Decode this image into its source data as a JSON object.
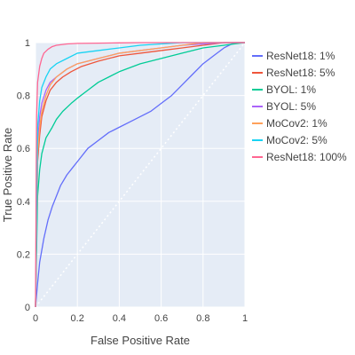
{
  "chart_data": {
    "type": "line",
    "title": "",
    "xlabel": "False Positive Rate",
    "ylabel": "True Positive Rate",
    "xlim": [
      0,
      1
    ],
    "ylim": [
      0,
      1
    ],
    "xticks": [
      "0",
      "0.2",
      "0.4",
      "0.6",
      "0.8",
      "1"
    ],
    "yticks": [
      "0",
      "0.2",
      "0.4",
      "0.6",
      "0.8",
      "1"
    ],
    "grid": true,
    "legend_position": "right",
    "plot_bgcolor": "#E5ECF6",
    "reference_line": {
      "style": "dotted",
      "color": "#ffffff",
      "x": [
        0,
        1
      ],
      "y": [
        0,
        1
      ]
    },
    "series": [
      {
        "name": "ResNet18: 1%",
        "color": "#636EFA",
        "x": [
          0,
          0.01,
          0.02,
          0.04,
          0.06,
          0.08,
          0.1,
          0.12,
          0.15,
          0.18,
          0.2,
          0.25,
          0.3,
          0.35,
          0.4,
          0.45,
          0.5,
          0.55,
          0.6,
          0.65,
          0.7,
          0.75,
          0.8,
          0.85,
          0.9,
          0.95,
          1.0
        ],
        "y": [
          0,
          0.09,
          0.17,
          0.26,
          0.33,
          0.38,
          0.42,
          0.46,
          0.5,
          0.53,
          0.55,
          0.6,
          0.63,
          0.66,
          0.68,
          0.7,
          0.72,
          0.74,
          0.77,
          0.8,
          0.84,
          0.88,
          0.92,
          0.95,
          0.98,
          1.0,
          1.0
        ]
      },
      {
        "name": "ResNet18: 5%",
        "color": "#EF553B",
        "x": [
          0,
          0.01,
          0.02,
          0.03,
          0.05,
          0.07,
          0.1,
          0.13,
          0.17,
          0.22,
          0.3,
          0.4,
          0.5,
          0.6,
          0.7,
          0.8,
          0.9,
          1.0
        ],
        "y": [
          0,
          0.55,
          0.65,
          0.72,
          0.78,
          0.82,
          0.85,
          0.87,
          0.89,
          0.91,
          0.93,
          0.95,
          0.96,
          0.97,
          0.98,
          0.99,
          1.0,
          1.0
        ]
      },
      {
        "name": "BYOL: 1%",
        "color": "#00CC96",
        "x": [
          0,
          0.01,
          0.02,
          0.03,
          0.05,
          0.08,
          0.1,
          0.13,
          0.17,
          0.2,
          0.25,
          0.3,
          0.35,
          0.4,
          0.5,
          0.6,
          0.7,
          0.8,
          0.9,
          1.0
        ],
        "y": [
          0,
          0.42,
          0.52,
          0.58,
          0.64,
          0.68,
          0.71,
          0.74,
          0.77,
          0.79,
          0.82,
          0.85,
          0.87,
          0.89,
          0.92,
          0.94,
          0.96,
          0.98,
          0.99,
          1.0
        ]
      },
      {
        "name": "BYOL: 5%",
        "color": "#AB63FA",
        "x": [
          0,
          0.01,
          0.02,
          0.03,
          0.05,
          0.07,
          0.1,
          0.15,
          0.2,
          0.3,
          0.4,
          0.5,
          0.6,
          0.7,
          0.8,
          0.9,
          1.0
        ],
        "y": [
          0,
          0.62,
          0.72,
          0.77,
          0.82,
          0.85,
          0.87,
          0.9,
          0.92,
          0.94,
          0.96,
          0.97,
          0.98,
          0.99,
          0.995,
          1.0,
          1.0
        ]
      },
      {
        "name": "MoCov2: 1%",
        "color": "#FFA15A",
        "x": [
          0,
          0.01,
          0.02,
          0.03,
          0.05,
          0.07,
          0.1,
          0.15,
          0.2,
          0.3,
          0.4,
          0.5,
          0.6,
          0.7,
          0.8,
          0.9,
          1.0
        ],
        "y": [
          0,
          0.58,
          0.68,
          0.74,
          0.8,
          0.84,
          0.87,
          0.9,
          0.92,
          0.94,
          0.96,
          0.97,
          0.98,
          0.99,
          1.0,
          1.0,
          1.0
        ]
      },
      {
        "name": "MoCov2: 5%",
        "color": "#19D3F3",
        "x": [
          0,
          0.01,
          0.02,
          0.03,
          0.05,
          0.07,
          0.1,
          0.15,
          0.2,
          0.3,
          0.4,
          0.5,
          0.6,
          0.7,
          0.8,
          0.9,
          1.0
        ],
        "y": [
          0,
          0.68,
          0.78,
          0.83,
          0.87,
          0.9,
          0.92,
          0.94,
          0.96,
          0.97,
          0.98,
          0.99,
          0.995,
          1.0,
          1.0,
          1.0,
          1.0
        ]
      },
      {
        "name": "ResNet18: 100%",
        "color": "#FF6692",
        "x": [
          0,
          0.005,
          0.01,
          0.02,
          0.03,
          0.04,
          0.06,
          0.08,
          0.1,
          0.15,
          0.2,
          0.3,
          0.4,
          0.5,
          0.6,
          0.8,
          1.0
        ],
        "y": [
          0,
          0.72,
          0.85,
          0.91,
          0.94,
          0.96,
          0.975,
          0.985,
          0.99,
          0.995,
          0.997,
          0.998,
          0.999,
          1.0,
          1.0,
          1.0,
          1.0
        ]
      }
    ]
  }
}
